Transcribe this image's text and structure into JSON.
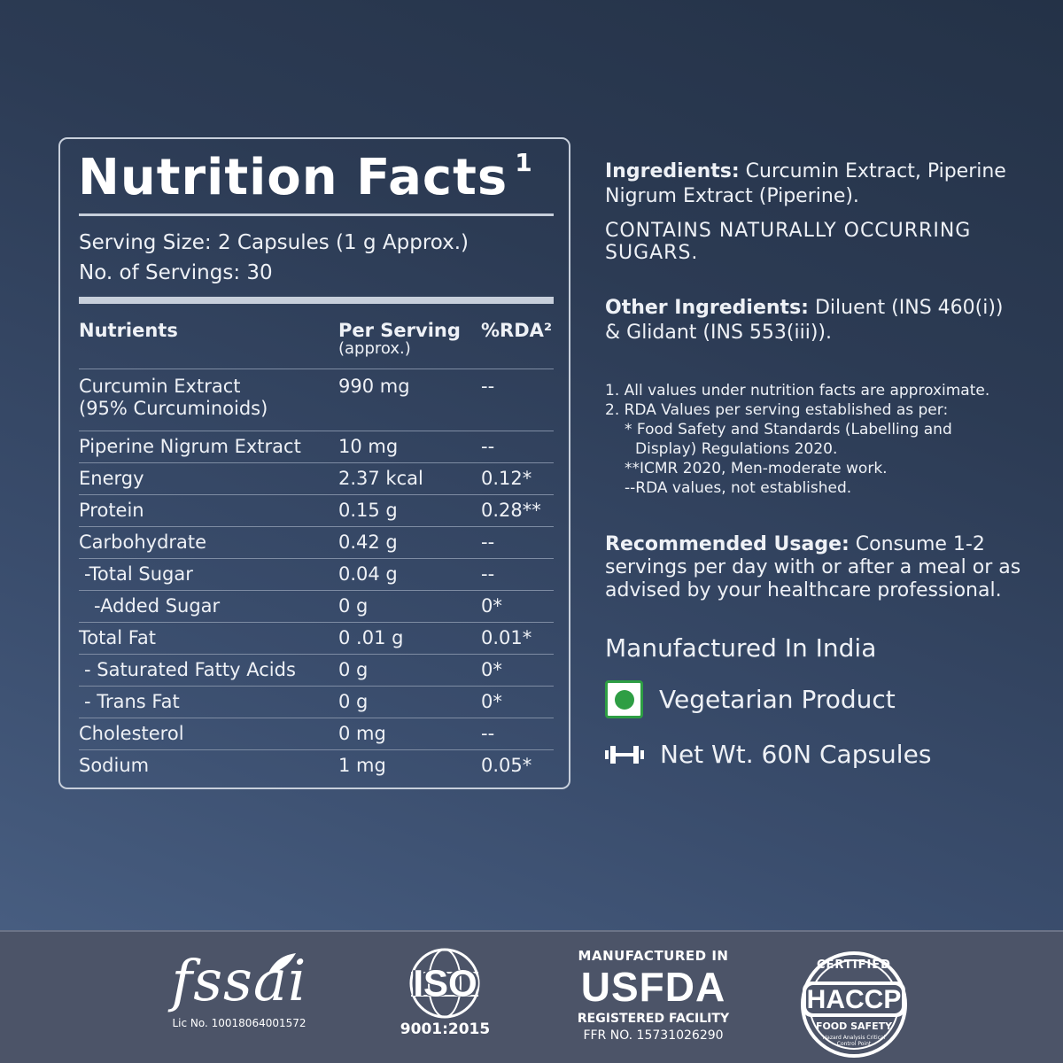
{
  "facts": {
    "title": "Nutrition Facts",
    "title_sup": "1",
    "serving_size": "Serving Size: 2 Capsules (1 g Approx.)",
    "servings": "No. of Servings: 30",
    "headers": {
      "nutrients": "Nutrients",
      "per_serving": "Per Serving",
      "approx": "(approx.)",
      "rda": "%RDA²"
    },
    "rows": [
      {
        "name": "Curcumin Extract",
        "name2": "(95% Curcuminoids)",
        "value": "990 mg",
        "rda": "--"
      },
      {
        "name": "Piperine Nigrum Extract",
        "value": "10 mg",
        "rda": "--"
      },
      {
        "name": "Energy",
        "value": "2.37 kcal",
        "rda": "0.12*"
      },
      {
        "name": "Protein",
        "value": "0.15 g",
        "rda": "0.28**"
      },
      {
        "name": "Carbohydrate",
        "value": "0.42 g",
        "rda": "--"
      },
      {
        "name": "-Total Sugar",
        "value": "0.04 g",
        "rda": "--"
      },
      {
        "name": "-Added Sugar",
        "value": "0 g",
        "rda": "0*"
      },
      {
        "name": "Total Fat",
        "value": "0 .01 g",
        "rda": "0.01*"
      },
      {
        "name": "- Saturated Fatty Acids",
        "value": "0 g",
        "rda": "0*"
      },
      {
        "name": "- Trans Fat",
        "value": "0 g",
        "rda": "0*"
      },
      {
        "name": "Cholesterol",
        "value": "0 mg",
        "rda": "--"
      },
      {
        "name": "Sodium",
        "value": "1 mg",
        "rda": "0.05*"
      }
    ]
  },
  "info": {
    "ingredients_label": "Ingredients:",
    "ingredients_line1": " Curcumin Extract, Piperine",
    "ingredients_line2": "Nigrum Extract (Piperine).",
    "sugars_line1": "CONTAINS NATURALLY OCCURRING",
    "sugars_line2": "SUGARS.",
    "other_label": "Other Ingredients:",
    "other_line1": " Diluent (INS 460(i))",
    "other_line2": "& Glidant (INS 553(iii)).",
    "notes": [
      "1.  All values under nutrition facts  are approximate.",
      "2.  RDA Values per serving established as per:",
      "* Food Safety and Standards (Labelling and",
      "Display) Regulations 2020.",
      "**ICMR 2020, Men-moderate work.",
      "--RDA values, not established."
    ],
    "usage_label": "Recommended Usage:",
    "usage_line1": "  Consume 1-2",
    "usage_line2": "servings per day with or after a meal or as",
    "usage_line3": "advised by your healthcare professional.",
    "made_in": "Manufactured In India",
    "veg": "Vegetarian Product",
    "net_wt": "Net Wt. 60N Capsules"
  },
  "footer": {
    "fssai": "fssai",
    "fssai_lic": "Lic No. 10018064001572",
    "iso": "ISO",
    "iso_num": "9001:2015",
    "usfda_top": "MANUFACTURED IN",
    "usfda": "USFDA",
    "usfda_reg": "REGISTERED FACILITY",
    "usfda_ffr": "FFR NO. 15731026290",
    "haccp": "HACCP",
    "haccp_certified": "CERTIFIED",
    "haccp_food": "FOOD SAFETY",
    "haccp_sub": "Hazard Analysis Critical Control Point"
  },
  "colors": {
    "veg_green": "#2e9e44",
    "border": "#c7cfdb",
    "footer_bg": "#4c5468"
  },
  "icons": [
    "veg-symbol-icon",
    "dumbbell-icon",
    "globe-icon",
    "leaf-icon"
  ]
}
